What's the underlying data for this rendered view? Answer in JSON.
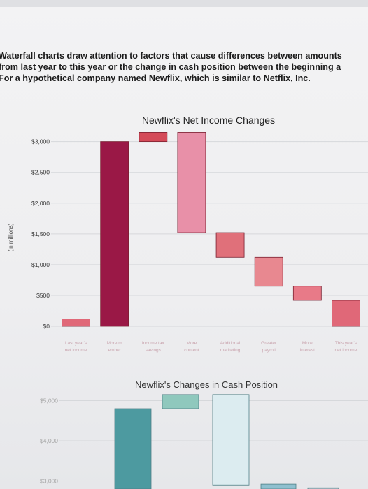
{
  "intro": {
    "line1": "Waterfall charts draw attention to factors that cause differences between amounts",
    "line2": "from last year to this year or the change in cash position between the beginning a",
    "line3": "For a hypothetical company named Newflix, which is similar to Netflix, Inc."
  },
  "chart_data": [
    {
      "type": "bar",
      "title": "Newflix's Net Income Changes",
      "ylabel": "(in millions)",
      "ylim": [
        0,
        3200
      ],
      "yticks": [
        "$0",
        "$500",
        "$1,000",
        "$1,500",
        "$2,000",
        "$2,500",
        "$3,000"
      ],
      "categories": [
        "Last year's net income",
        "More m...ember...",
        "Income tax savings",
        "More content",
        "Additional marketing",
        "Greater payroll",
        "More interest",
        "This year's net income"
      ],
      "category_labels": [
        [
          "Last year's",
          "net income"
        ],
        [
          "More m",
          "ember"
        ],
        [
          "Income tax",
          "savings"
        ],
        [
          "More",
          "content"
        ],
        [
          "Additional",
          "marketing"
        ],
        [
          "Greater",
          "payroll"
        ],
        [
          "More",
          "interest"
        ],
        [
          "This year's",
          "net income"
        ]
      ],
      "bars": [
        {
          "base": 0,
          "top": 120
        },
        {
          "base": 0,
          "top": 3000
        },
        {
          "base": 3000,
          "top": 3150
        },
        {
          "base": 1520,
          "top": 3150
        },
        {
          "base": 1120,
          "top": 1520
        },
        {
          "base": 650,
          "top": 1120
        },
        {
          "base": 420,
          "top": 650
        },
        {
          "base": 0,
          "top": 420
        }
      ],
      "colors": [
        "#e06878",
        "#9a1846",
        "#d44a58",
        "#e890a8",
        "#e0707a",
        "#e88890",
        "#e87a88",
        "#e06878"
      ],
      "grid": true
    },
    {
      "type": "bar",
      "title": "Newflix's Changes in Cash Position",
      "ylim": [
        2800,
        5200
      ],
      "yticks": [
        "$3,000",
        "$4,000",
        "$5,000"
      ],
      "bars": [
        {
          "base": 2800,
          "top": 4800
        },
        {
          "base": 4800,
          "top": 5150
        },
        {
          "base": 2900,
          "top": 5150
        },
        {
          "base": 2800,
          "top": 2920
        },
        {
          "base": 2800,
          "top": 2830
        }
      ],
      "colors": [
        "#4d9aa0",
        "#8fc8bd",
        "#dcecf0",
        "#8fc0cf",
        "#9fb3bc"
      ],
      "grid": true
    }
  ]
}
